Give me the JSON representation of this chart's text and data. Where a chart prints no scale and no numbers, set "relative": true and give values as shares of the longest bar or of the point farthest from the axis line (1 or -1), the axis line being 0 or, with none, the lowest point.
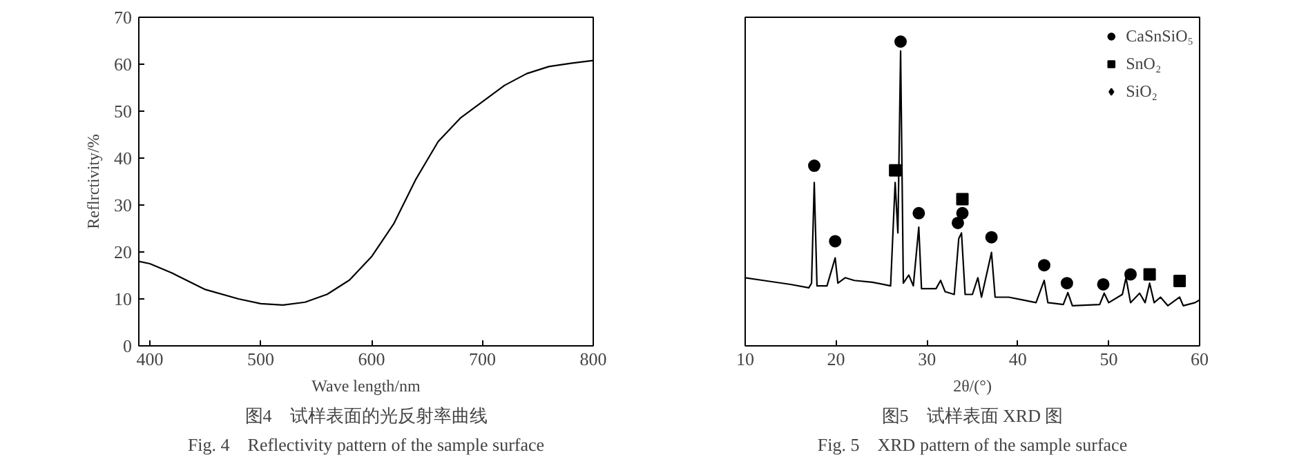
{
  "chart_data": [
    {
      "type": "line",
      "xlabel": "Wave length/nm",
      "ylabel": "Reflrctivity/%",
      "x": [
        390,
        400,
        420,
        450,
        480,
        500,
        520,
        540,
        560,
        580,
        600,
        620,
        640,
        660,
        680,
        700,
        720,
        740,
        760,
        780,
        800
      ],
      "series": [
        {
          "color": "#000000",
          "values": [
            18,
            17.5,
            15.5,
            12,
            10,
            9,
            8.7,
            9.3,
            11,
            14,
            19,
            26,
            35.5,
            43.5,
            48.5,
            52,
            55.5,
            58,
            59.5,
            60.2,
            60.8
          ]
        }
      ],
      "xlim": [
        390,
        800
      ],
      "xticks": [
        400,
        500,
        600,
        700,
        800
      ],
      "ylim": [
        0,
        70
      ],
      "yticks": [
        0,
        10,
        20,
        30,
        40,
        50,
        60,
        70
      ],
      "grid": false,
      "legend": false,
      "annotations": [
        "图4　试样表面的光反射率曲线",
        "Fig. 4　Reflectivity pattern of the sample surface"
      ]
    },
    {
      "type": "line",
      "xlabel": "2θ/(°)",
      "relative": true,
      "xlim": [
        10,
        60
      ],
      "xticks": [
        10,
        20,
        30,
        40,
        50,
        60
      ],
      "series": [
        {
          "type": "line",
          "color": "#000000",
          "x": [
            10,
            12,
            15,
            17,
            17.3,
            17.6,
            17.9,
            19,
            19.9,
            20.2,
            21,
            22,
            24,
            26,
            26.5,
            26.8,
            27.1,
            27.4,
            28,
            28.5,
            29.1,
            29.4,
            31,
            31.5,
            32,
            33,
            33.5,
            33.8,
            34.2,
            35,
            35.6,
            36,
            37.1,
            37.5,
            39,
            40.5,
            42,
            42.9,
            43.3,
            45,
            45.5,
            46,
            49,
            49.5,
            50,
            51.5,
            51.9,
            52.4,
            53.4,
            54,
            54.5,
            55,
            55.7,
            56.5,
            57.8,
            58.2,
            59.5,
            60
          ],
          "values": [
            0.224,
            0.215,
            0.202,
            0.191,
            0.206,
            0.537,
            0.197,
            0.197,
            0.289,
            0.206,
            0.224,
            0.215,
            0.209,
            0.197,
            0.537,
            0.371,
            0.969,
            0.206,
            0.233,
            0.197,
            0.39,
            0.188,
            0.188,
            0.215,
            0.178,
            0.169,
            0.353,
            0.371,
            0.169,
            0.169,
            0.224,
            0.16,
            0.307,
            0.16,
            0.16,
            0.151,
            0.142,
            0.215,
            0.142,
            0.136,
            0.175,
            0.132,
            0.136,
            0.173,
            0.142,
            0.169,
            0.224,
            0.142,
            0.173,
            0.142,
            0.206,
            0.142,
            0.16,
            0.132,
            0.16,
            0.132,
            0.142,
            0.151
          ]
        },
        {
          "type": "scatter",
          "name": "CaSnSiO₅",
          "color": "#000000",
          "marker": "circle",
          "x": [
            17.6,
            19.9,
            27.1,
            29.1,
            33.4,
            33.9,
            37.1,
            42.9,
            45.4,
            49.4,
            52.4
          ],
          "values": [
            0.592,
            0.344,
            1.0,
            0.436,
            0.404,
            0.436,
            0.357,
            0.265,
            0.206,
            0.202,
            0.235
          ]
        },
        {
          "type": "scatter",
          "name": "SnO₂",
          "color": "#000000",
          "marker": "square",
          "x": [
            26.5,
            33.9,
            54.5,
            57.8
          ],
          "values": [
            0.577,
            0.482,
            0.235,
            0.213
          ]
        },
        {
          "type": "scatter",
          "name": "SiO₂",
          "color": "#000000",
          "marker": "diamond"
        }
      ],
      "grid": false,
      "legend": "top right",
      "annotations": [
        "图5　试样表面 XRD 图",
        "Fig. 5　XRD pattern of the sample surface"
      ]
    }
  ]
}
